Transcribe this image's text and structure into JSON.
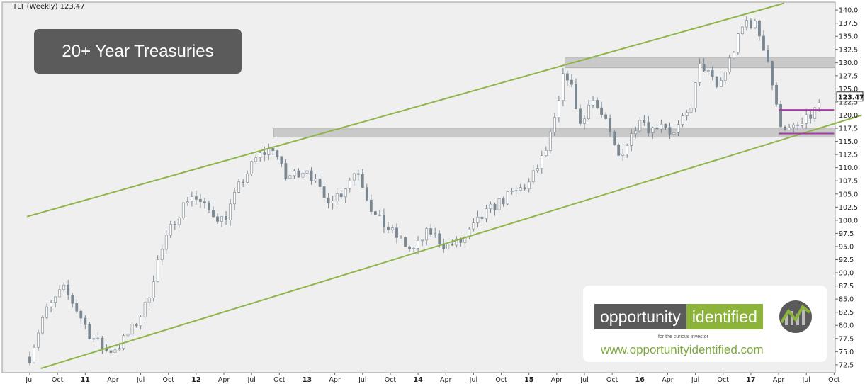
{
  "chart_data": {
    "type": "candlestick",
    "header": "TLT (Weekly) 123.47",
    "title": "20+ Year Treasuries",
    "last_price": "123.47",
    "ylim": [
      71,
      141.5
    ],
    "y_ticks": [
      "72.5",
      "75.0",
      "77.5",
      "80.0",
      "82.5",
      "85.0",
      "87.5",
      "90.0",
      "92.5",
      "95.0",
      "97.5",
      "100.0",
      "102.5",
      "105.0",
      "107.5",
      "110.0",
      "112.5",
      "115.0",
      "117.5",
      "120.0",
      "122.5",
      "125.0",
      "127.5",
      "130.0",
      "132.5",
      "135.0",
      "137.5",
      "140.0"
    ],
    "x_labels": [
      "Jul",
      "Oct",
      "11",
      "Apr",
      "Jul",
      "Oct",
      "12",
      "Apr",
      "Jul",
      "Oct",
      "13",
      "Apr",
      "Jul",
      "Oct",
      "14",
      "Apr",
      "Jul",
      "Oct",
      "15",
      "Apr",
      "Jul",
      "Oct",
      "16",
      "Apr",
      "Jul",
      "Oct",
      "17",
      "Apr",
      "Jul",
      "Oct"
    ],
    "price_path": [
      [
        0,
        74
      ],
      [
        0.25,
        82
      ],
      [
        0.6,
        87
      ],
      [
        0.8,
        84
      ],
      [
        1.1,
        78
      ],
      [
        1.4,
        75
      ],
      [
        1.6,
        76
      ],
      [
        1.9,
        80
      ],
      [
        2.1,
        84
      ],
      [
        2.3,
        92
      ],
      [
        2.6,
        100
      ],
      [
        2.9,
        105
      ],
      [
        3.2,
        102
      ],
      [
        3.5,
        100
      ],
      [
        3.8,
        107
      ],
      [
        4.1,
        112
      ],
      [
        4.4,
        114
      ],
      [
        4.6,
        108
      ],
      [
        5.0,
        110
      ],
      [
        5.3,
        104
      ],
      [
        5.6,
        105
      ],
      [
        5.9,
        110
      ],
      [
        6.2,
        101
      ],
      [
        6.6,
        97
      ],
      [
        6.9,
        94
      ],
      [
        7.2,
        98
      ],
      [
        7.5,
        95
      ],
      [
        7.8,
        96
      ],
      [
        8.1,
        100
      ],
      [
        8.4,
        103
      ],
      [
        8.7,
        105
      ],
      [
        9.0,
        107
      ],
      [
        9.3,
        113
      ],
      [
        9.5,
        120
      ],
      [
        9.65,
        129
      ],
      [
        9.8,
        124
      ],
      [
        9.95,
        117
      ],
      [
        10.1,
        124
      ],
      [
        10.4,
        118
      ],
      [
        10.6,
        112
      ],
      [
        10.8,
        115
      ],
      [
        11.0,
        120
      ],
      [
        11.2,
        117
      ],
      [
        11.4,
        119
      ],
      [
        11.6,
        116
      ],
      [
        11.9,
        121
      ],
      [
        12.1,
        130
      ],
      [
        12.4,
        125
      ],
      [
        12.6,
        130
      ],
      [
        12.9,
        138
      ],
      [
        13.1,
        137
      ],
      [
        13.3,
        131
      ],
      [
        13.5,
        119
      ],
      [
        13.7,
        117
      ],
      [
        13.9,
        118
      ],
      [
        14.1,
        120
      ],
      [
        14.3,
        123.47
      ]
    ],
    "channels": [
      {
        "p1": [
          -0.05,
          100.7
        ],
        "p2": [
          13.6,
          141.3
        ]
      },
      {
        "p1": [
          0.2,
          71.8
        ],
        "p2": [
          15.0,
          120.0
        ]
      }
    ],
    "zones": [
      {
        "from_x": 9.65,
        "to_x": 15.0,
        "low": 129.0,
        "high": 131.0
      },
      {
        "from_x": 4.4,
        "to_x": 15.0,
        "low": 115.8,
        "high": 117.4
      }
    ],
    "range_lines": [
      {
        "from_x": 13.5,
        "to_x": 14.5,
        "y": 121.0
      },
      {
        "from_x": 13.5,
        "to_x": 14.5,
        "y": 116.5
      }
    ],
    "colors": {
      "candle": "#7a8690",
      "channel": "#8db548",
      "zone": "#c9c9c9",
      "range": "#a43ba3",
      "plot_bg": "#efefef"
    }
  },
  "logo": {
    "part1": "opportunity",
    "part2": "identified",
    "tagline": "for the curious investor",
    "website": "www.opportunityidentified.com"
  }
}
